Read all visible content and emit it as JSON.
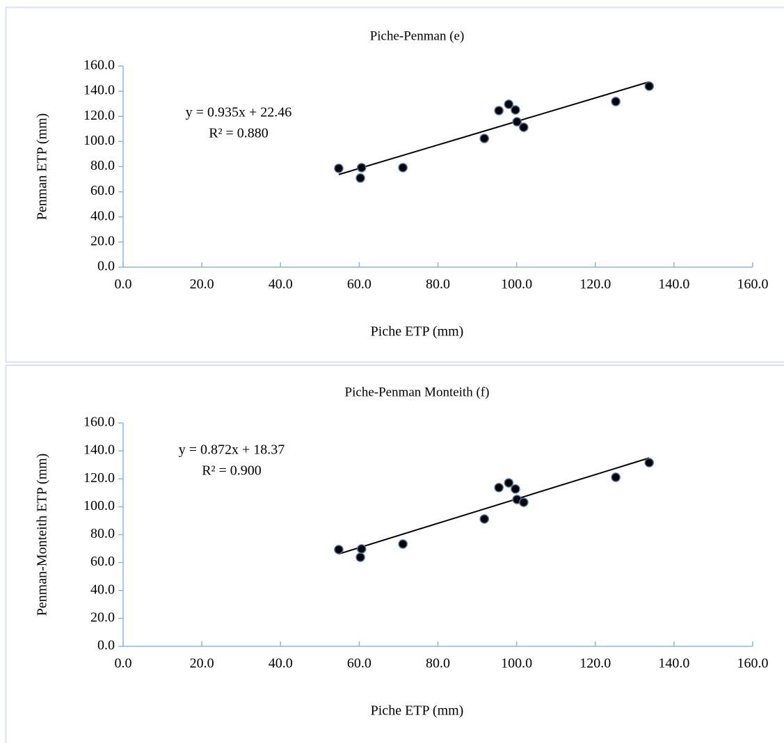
{
  "chart_data": [
    {
      "type": "scatter",
      "title": "Piche-Penman (e)",
      "x_label": "Piche ETP (mm)",
      "y_label": "Penman ETP (mm)",
      "equation": "y = 0.935x + 22.46",
      "r_squared": "R² = 0.880",
      "trendline": {
        "slope": 0.935,
        "intercept": 22.46,
        "color": "#000000"
      },
      "color": "#000000",
      "x": [
        54.8,
        60.6,
        60.3,
        71.1,
        91.8,
        95.5,
        98.0,
        99.7,
        100.1,
        101.8,
        125.2,
        133.7
      ],
      "y": [
        78.6,
        79.2,
        70.9,
        79.2,
        102.4,
        124.6,
        129.6,
        125.1,
        115.7,
        111.3,
        131.8,
        144.0
      ],
      "xlim": [
        0,
        160
      ],
      "ylim": [
        0,
        160
      ],
      "xticks": [
        {
          "value": 0,
          "label": "0.0"
        },
        {
          "value": 20,
          "label": "20.0"
        },
        {
          "value": 40,
          "label": "40.0"
        },
        {
          "value": 60,
          "label": "60.0"
        },
        {
          "value": 80,
          "label": "80.0"
        },
        {
          "value": 100,
          "label": "100.0"
        },
        {
          "value": 120,
          "label": "120.0"
        },
        {
          "value": 140,
          "label": "140.0"
        },
        {
          "value": 160,
          "label": "160.0"
        }
      ],
      "yticks": [
        {
          "value": 0,
          "label": "0.0"
        },
        {
          "value": 20,
          "label": "20.0"
        },
        {
          "value": 40,
          "label": "40.0"
        },
        {
          "value": 60,
          "label": "60.0"
        },
        {
          "value": 80,
          "label": "80.0"
        },
        {
          "value": 100,
          "label": "100.0"
        },
        {
          "value": 120,
          "label": "120.0"
        },
        {
          "value": 140,
          "label": "140.0"
        },
        {
          "value": 160,
          "label": "160.0"
        }
      ]
    },
    {
      "type": "scatter",
      "title": "Piche-Penman Monteith (f)",
      "x_label": "Piche ETP (mm)",
      "y_label": "Penman-Monteith ETP (mm)",
      "equation": "y = 0.872x + 18.37",
      "r_squared": "R² = 0.900",
      "trendline": {
        "slope": 0.872,
        "intercept": 18.37,
        "color": "#000000"
      },
      "color": "#000000",
      "x": [
        54.8,
        60.6,
        60.3,
        71.1,
        91.8,
        95.5,
        98.0,
        99.7,
        100.1,
        101.8,
        125.2,
        133.7
      ],
      "y": [
        69.3,
        69.8,
        63.8,
        73.3,
        91.2,
        113.7,
        117.1,
        112.7,
        105.2,
        103.2,
        121.1,
        131.6
      ],
      "xlim": [
        0,
        160
      ],
      "ylim": [
        0,
        160
      ],
      "xticks": [
        {
          "value": 0,
          "label": "0.0"
        },
        {
          "value": 20,
          "label": "20.0"
        },
        {
          "value": 40,
          "label": "40.0"
        },
        {
          "value": 60,
          "label": "60.0"
        },
        {
          "value": 80,
          "label": "80.0"
        },
        {
          "value": 100,
          "label": "100.0"
        },
        {
          "value": 120,
          "label": "120.0"
        },
        {
          "value": 140,
          "label": "140.0"
        },
        {
          "value": 160,
          "label": "160.0"
        }
      ],
      "yticks": [
        {
          "value": 0,
          "label": "0.0"
        },
        {
          "value": 20,
          "label": "20.0"
        },
        {
          "value": 40,
          "label": "40.0"
        },
        {
          "value": 60,
          "label": "60.0"
        },
        {
          "value": 80,
          "label": "80.0"
        },
        {
          "value": 100,
          "label": "100.0"
        },
        {
          "value": 120,
          "label": "120.0"
        },
        {
          "value": 140,
          "label": "140.0"
        },
        {
          "value": 160,
          "label": "160.0"
        }
      ]
    }
  ]
}
